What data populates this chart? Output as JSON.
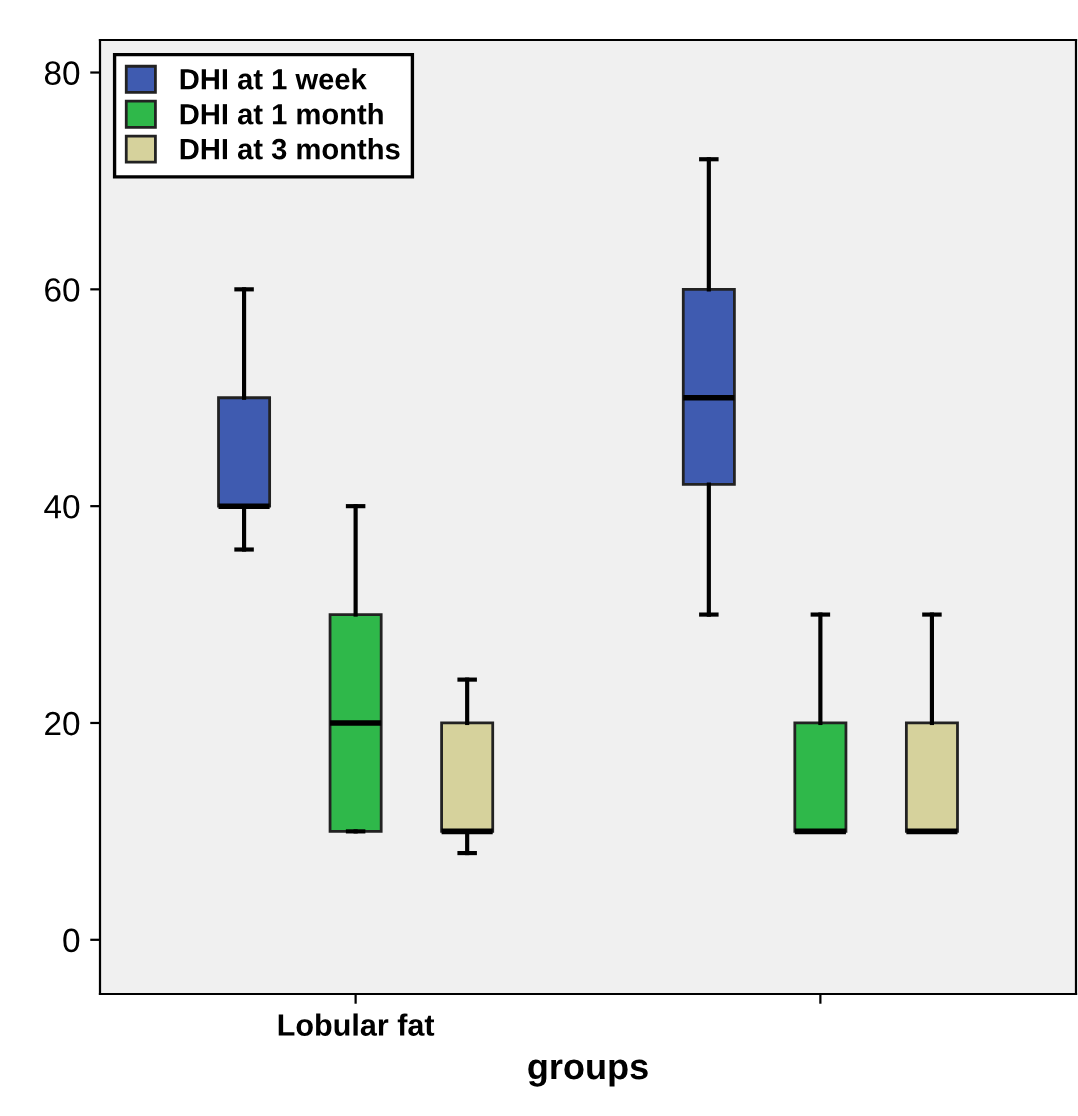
{
  "chart_data": {
    "type": "box",
    "xlabel": "groups",
    "categories": [
      "Lobular fat",
      null
    ],
    "series": [
      {
        "name": "DHI at 1 week",
        "color": "#3f5bb0",
        "boxes": [
          {
            "low": 36,
            "q1": 40,
            "median": 40,
            "q3": 50,
            "high": 60
          },
          {
            "low": 30,
            "q1": 42,
            "median": 50,
            "q3": 60,
            "high": 72
          }
        ]
      },
      {
        "name": "DHI at 1 month",
        "color": "#2fb84a",
        "boxes": [
          {
            "low": 10,
            "q1": 10,
            "median": 20,
            "q3": 30,
            "high": 40
          },
          {
            "low": 10,
            "q1": 10,
            "median": 10,
            "q3": 20,
            "high": 30
          }
        ]
      },
      {
        "name": "DHI at 3 months",
        "color": "#d6d29c",
        "boxes": [
          {
            "low": 8,
            "q1": 10,
            "median": 10,
            "q3": 20,
            "high": 24
          },
          {
            "low": 10,
            "q1": 10,
            "median": 10,
            "q3": 20,
            "high": 30
          }
        ]
      }
    ],
    "ylim": [
      -5,
      83
    ],
    "yticks": [
      0,
      20,
      40,
      60,
      80
    ],
    "grid": false,
    "legend": "top left"
  }
}
